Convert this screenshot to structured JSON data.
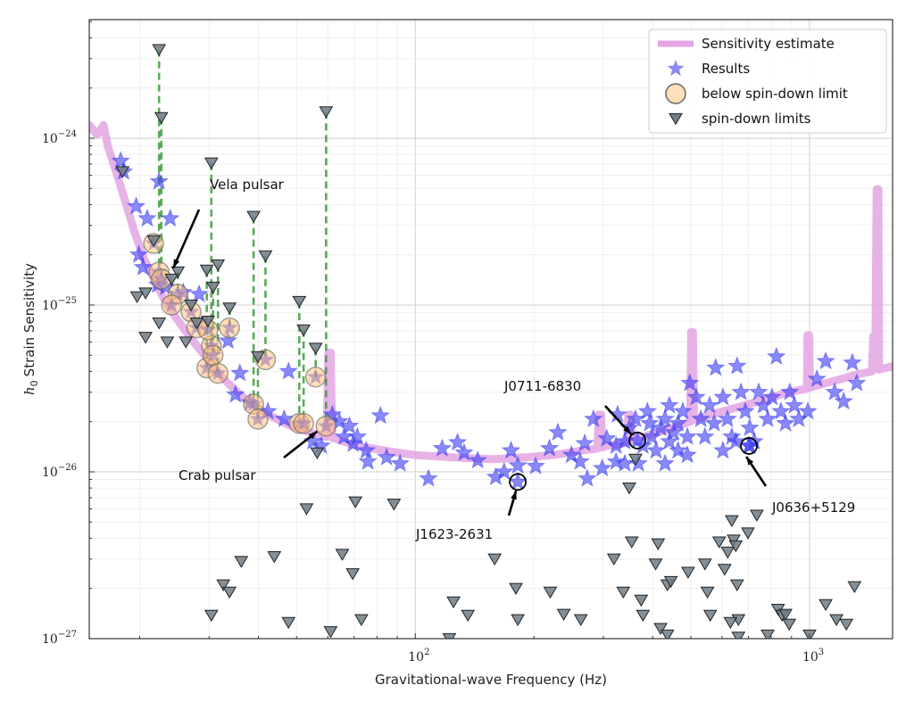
{
  "chart_data": {
    "type": "scatter",
    "xlabel": "Gravitational-wave Frequency (Hz)",
    "ylabel_symbol": "h",
    "ylabel_subscript": "0",
    "ylabel": "Strain Sensitivity",
    "xscale": "log",
    "yscale": "log",
    "xlim": [
      14.9,
      1624
    ],
    "ylim": [
      1e-27,
      5.14e-24
    ],
    "grid": true,
    "legend_placement": "top-right",
    "x_ticks": [
      {
        "value": 100,
        "base": "10",
        "exp": "2"
      },
      {
        "value": 1000,
        "base": "10",
        "exp": "3"
      }
    ],
    "y_ticks": [
      {
        "value": 1e-24,
        "base": "10",
        "exp": "−24"
      },
      {
        "value": 1e-25,
        "base": "10",
        "exp": "−25"
      },
      {
        "value": 1e-26,
        "base": "10",
        "exp": "−26"
      },
      {
        "value": 1e-27,
        "base": "10",
        "exp": "−27"
      }
    ],
    "legend": [
      {
        "label": "Sensitivity estimate",
        "kind": "line"
      },
      {
        "label": "Results",
        "kind": "star"
      },
      {
        "label": "below spin-down limit",
        "kind": "circle"
      },
      {
        "label": "spin-down limits",
        "kind": "triangle"
      }
    ],
    "colors": {
      "sensitivity": "#e3a6e3",
      "results": "#3a3af5",
      "below": "#ffbf73",
      "spindown": "#6f7c87",
      "link": "#3e9a3e"
    },
    "sensitivity_curve": [
      [
        14.9,
        1.2e-24
      ],
      [
        15.6,
        1.05e-24
      ],
      [
        16.2,
        1.2e-24
      ],
      [
        16.6,
        9e-25
      ],
      [
        17.5,
        6.1e-25
      ],
      [
        18.5,
        4e-25
      ],
      [
        19.4,
        2.75e-25
      ],
      [
        20.5,
        1.9e-25
      ],
      [
        22.1,
        1.32e-25
      ],
      [
        23.5,
        1e-25
      ],
      [
        25.1,
        8e-26
      ],
      [
        27,
        6.3e-26
      ],
      [
        29.4,
        4.9e-26
      ],
      [
        32,
        3.8e-26
      ],
      [
        34.4,
        3.2e-26
      ],
      [
        38,
        2.6e-26
      ],
      [
        42.3,
        2.2e-26
      ],
      [
        48,
        1.9e-26
      ],
      [
        55,
        1.7e-26
      ],
      [
        59.6,
        1.62e-26
      ],
      [
        60.2,
        5.2e-26
      ],
      [
        61,
        5.2e-26
      ],
      [
        61.6,
        1.6e-26
      ],
      [
        71.3,
        1.43e-26
      ],
      [
        85,
        1.33e-26
      ],
      [
        100,
        1.26e-26
      ],
      [
        125,
        1.22e-26
      ],
      [
        156,
        1.19e-26
      ],
      [
        190,
        1.22e-26
      ],
      [
        224,
        1.26e-26
      ],
      [
        270,
        1.35e-26
      ],
      [
        290,
        1.38e-26
      ],
      [
        292,
        2.2e-26
      ],
      [
        296,
        2.2e-26
      ],
      [
        298,
        1.4e-26
      ],
      [
        306,
        1.43e-26
      ],
      [
        345,
        1.5e-26
      ],
      [
        347,
        2.2e-26
      ],
      [
        352,
        2.2e-26
      ],
      [
        354,
        1.55e-26
      ],
      [
        378,
        1.62e-26
      ],
      [
        440,
        1.8e-26
      ],
      [
        498,
        2e-26
      ],
      [
        501,
        6.9e-26
      ],
      [
        506,
        6.9e-26
      ],
      [
        509,
        2.05e-26
      ],
      [
        600,
        2.3e-26
      ],
      [
        743,
        2.64e-26
      ],
      [
        880,
        3e-26
      ],
      [
        985,
        3.15e-26
      ],
      [
        988,
        6.6e-26
      ],
      [
        998,
        6.6e-26
      ],
      [
        1002,
        3.2e-26
      ],
      [
        1150,
        3.5e-26
      ],
      [
        1317,
        3.83e-26
      ],
      [
        1440,
        4e-26
      ],
      [
        1450,
        6.5e-26
      ],
      [
        1470,
        6.5e-26
      ],
      [
        1480,
        4.95e-25
      ],
      [
        1495,
        4.95e-25
      ],
      [
        1500,
        4.1e-26
      ],
      [
        1624,
        4.3e-26
      ]
    ],
    "results": [
      [
        17.9,
        7.3e-25
      ],
      [
        18.2,
        6.3e-25
      ],
      [
        19.6,
        3.9e-25
      ],
      [
        20.9,
        3.3e-25
      ],
      [
        22.4,
        5.5e-25
      ],
      [
        23.9,
        3.3e-25
      ],
      [
        19.9,
        2e-25
      ],
      [
        20.4,
        1.68e-25
      ],
      [
        22.2,
        1.32e-25
      ],
      [
        23.3,
        1.28e-25
      ],
      [
        25.8,
        1.19e-25
      ],
      [
        28.3,
        1.16e-25
      ],
      [
        33.5,
        6.1e-26
      ],
      [
        35.9,
        3.9e-26
      ],
      [
        35.0,
        2.9e-26
      ],
      [
        38.1,
        2.6e-26
      ],
      [
        42.3,
        2.3e-26
      ],
      [
        47.7,
        4e-26
      ],
      [
        46.5,
        2.07e-26
      ],
      [
        61.6,
        2.2e-26
      ],
      [
        64.2,
        2e-26
      ],
      [
        68.1,
        1.88e-26
      ],
      [
        71.3,
        1.62e-26
      ],
      [
        69.6,
        1.47e-26
      ],
      [
        75.1,
        1.34e-26
      ],
      [
        75.8,
        1.15e-26
      ],
      [
        81.6,
        2.17e-26
      ],
      [
        66.0,
        1.62e-26
      ],
      [
        57.8,
        1.43e-26
      ],
      [
        55.0,
        1.52e-26
      ],
      [
        84.6,
        1.22e-26
      ],
      [
        91.5,
        1.12e-26
      ],
      [
        108,
        9.1e-27
      ],
      [
        117,
        1.38e-26
      ],
      [
        128,
        1.5e-26
      ],
      [
        133,
        1.3e-26
      ],
      [
        144,
        1.17e-26
      ],
      [
        160,
        9.3e-27
      ],
      [
        168,
        1e-26
      ],
      [
        175,
        1.34e-26
      ],
      [
        182,
        1.09e-26
      ],
      [
        202,
        1.08e-26
      ],
      [
        219,
        1.38e-26
      ],
      [
        230,
        1.72e-26
      ],
      [
        249,
        1.26e-26
      ],
      [
        262,
        1.15e-26
      ],
      [
        273,
        9.1e-27
      ],
      [
        269,
        1.48e-26
      ],
      [
        283,
        2.07e-26
      ],
      [
        306,
        1.58e-26
      ],
      [
        326,
        2.2e-26
      ],
      [
        340,
        1.12e-26
      ],
      [
        323,
        1.43e-26
      ],
      [
        349,
        1.83e-26
      ],
      [
        362,
        2.07e-26
      ],
      [
        378,
        1.43e-26
      ],
      [
        388,
        2.3e-26
      ],
      [
        398,
        1.62e-26
      ],
      [
        408,
        1.34e-26
      ],
      [
        419,
        1.83e-26
      ],
      [
        430,
        2.07e-26
      ],
      [
        441,
        1.52e-26
      ],
      [
        452,
        1.72e-26
      ],
      [
        464,
        1.34e-26
      ],
      [
        477,
        2.3e-26
      ],
      [
        490,
        1.62e-26
      ],
      [
        497,
        3.4e-26
      ],
      [
        516,
        2.8e-26
      ],
      [
        530,
        2.07e-26
      ],
      [
        543,
        1.62e-26
      ],
      [
        558,
        2.5e-26
      ],
      [
        573,
        1.95e-26
      ],
      [
        578,
        4.2e-26
      ],
      [
        603,
        2.8e-26
      ],
      [
        619,
        2.07e-26
      ],
      [
        635,
        1.62e-26
      ],
      [
        655,
        4.3e-26
      ],
      [
        670,
        3e-26
      ],
      [
        687,
        2.3e-26
      ],
      [
        705,
        1.83e-26
      ],
      [
        724,
        1.52e-26
      ],
      [
        743,
        3e-26
      ],
      [
        763,
        2.5e-26
      ],
      [
        783,
        2.07e-26
      ],
      [
        803,
        2.8e-26
      ],
      [
        824,
        4.9e-26
      ],
      [
        846,
        2.3e-26
      ],
      [
        869,
        1.95e-26
      ],
      [
        891,
        3e-26
      ],
      [
        915,
        2.5e-26
      ],
      [
        939,
        2.07e-26
      ],
      [
        990,
        2.3e-26
      ],
      [
        1044,
        3.6e-26
      ],
      [
        1099,
        4.6e-26
      ],
      [
        1158,
        3e-26
      ],
      [
        1220,
        2.64e-26
      ],
      [
        1284,
        4.5e-26
      ],
      [
        1317,
        3.4e-26
      ],
      [
        368,
        1.12e-26
      ],
      [
        323,
        1.15e-26
      ],
      [
        298,
        1.05e-26
      ],
      [
        430,
        1.12e-26
      ],
      [
        340,
        1.52e-26
      ],
      [
        490,
        1.26e-26
      ],
      [
        603,
        1.34e-26
      ],
      [
        650,
        1.52e-26
      ],
      [
        705,
        1.43e-26
      ],
      [
        393,
        1.95e-26
      ],
      [
        441,
        2.5e-26
      ],
      [
        464,
        1.95e-26
      ],
      [
        366,
        1.54e-26
      ],
      [
        182,
        8.7e-27
      ],
      [
        702,
        1.43e-26
      ]
    ],
    "below_spindown": [
      {
        "f": 22.4,
        "h_sd": 3.4e-24,
        "h_ul": 1.58e-25
      },
      {
        "f": 22.7,
        "h_sd": 1.33e-24,
        "h_ul": 1.43e-25
      },
      {
        "f": 30.4,
        "h_sd": 7.1e-25,
        "h_ul": 5.7e-26
      },
      {
        "f": 29.6,
        "h_sd": 1.62e-25,
        "h_ul": 4.2e-26
      },
      {
        "f": 31.6,
        "h_sd": 1.74e-25,
        "h_ul": 3.9e-26
      },
      {
        "f": 30.7,
        "h_sd": 1.28e-25,
        "h_ul": 5e-26
      },
      {
        "f": 38.9,
        "h_sd": 3.4e-25,
        "h_ul": 2.55e-26
      },
      {
        "f": 41.7,
        "h_sd": 1.97e-25,
        "h_ul": 4.7e-26
      },
      {
        "f": 39.9,
        "h_sd": 4.9e-26,
        "h_ul": 2.07e-26
      },
      {
        "f": 50.8,
        "h_sd": 1.05e-25,
        "h_ul": 1.95e-26
      },
      {
        "f": 52.1,
        "h_sd": 7.1e-26,
        "h_ul": 1.95e-26
      },
      {
        "f": 55.9,
        "h_sd": 5.5e-26,
        "h_ul": 3.7e-26
      },
      {
        "f": 59.4,
        "h_sd": 1.44e-24,
        "h_ul": 1.88e-26
      },
      {
        "f": 33.8,
        "h_sd": 9.6e-26,
        "h_ul": 7.3e-26
      },
      {
        "f": 21.7,
        "h_sd": 2.43e-25,
        "h_ul": 2.34e-25
      },
      {
        "f": 25.0,
        "h_sd": 1.58e-25,
        "h_ul": 1.16e-25
      },
      {
        "f": 24.1,
        "h_sd": 1.43e-25,
        "h_ul": 1e-25
      },
      {
        "f": 27.0,
        "h_sd": 1e-25,
        "h_ul": 9.1e-26
      },
      {
        "f": 27.9,
        "h_sd": 7.8e-26,
        "h_ul": 7.3e-26
      },
      {
        "f": 29.8,
        "h_sd": 8e-26,
        "h_ul": 7.1e-26
      }
    ],
    "spindown_only": [
      [
        18.1,
        6.3e-25
      ],
      [
        19.7,
        1.12e-25
      ],
      [
        20.7,
        1.18e-25
      ],
      [
        22.4,
        7.8e-26
      ],
      [
        20.7,
        6.4e-26
      ],
      [
        23.5,
        6e-26
      ],
      [
        26.2,
        6e-26
      ],
      [
        56.4,
        1.3e-26
      ],
      [
        362,
        1.19e-26
      ],
      [
        349,
        8e-27
      ],
      [
        70.5,
        6.6e-27
      ],
      [
        53.0,
        6e-27
      ],
      [
        88.3,
        6.4e-27
      ],
      [
        36.2,
        2.9e-27
      ],
      [
        43.9,
        3.1e-27
      ],
      [
        32.6,
        2.1e-27
      ],
      [
        33.8,
        1.9e-27
      ],
      [
        30.4,
        1.38e-27
      ],
      [
        47.7,
        1.25e-27
      ],
      [
        65.3,
        3.2e-27
      ],
      [
        69.4,
        2.45e-27
      ],
      [
        73.0,
        1.3e-27
      ],
      [
        61.0,
        1.1e-27
      ],
      [
        125,
        1.66e-27
      ],
      [
        136,
        1.38e-27
      ],
      [
        159,
        3e-27
      ],
      [
        180,
        2e-27
      ],
      [
        182,
        1.3e-27
      ],
      [
        122,
        1e-27
      ],
      [
        220,
        1.9e-27
      ],
      [
        238,
        1.4e-27
      ],
      [
        263,
        1.3e-27
      ],
      [
        319,
        3e-27
      ],
      [
        354,
        3.8e-27
      ],
      [
        337,
        1.9e-27
      ],
      [
        378,
        1.38e-27
      ],
      [
        374,
        1.7e-27
      ],
      [
        413,
        3.7e-27
      ],
      [
        407,
        2.8e-27
      ],
      [
        436,
        2.1e-27
      ],
      [
        445,
        2.2e-27
      ],
      [
        492,
        2.5e-27
      ],
      [
        419,
        1.15e-27
      ],
      [
        436,
        1.05e-27
      ],
      [
        543,
        2.8e-27
      ],
      [
        551,
        1.9e-27
      ],
      [
        560,
        1.38e-27
      ],
      [
        590,
        3.8e-27
      ],
      [
        609,
        2.6e-27
      ],
      [
        620,
        3.3e-27
      ],
      [
        635,
        5.1e-27
      ],
      [
        642,
        3.9e-27
      ],
      [
        655,
        2.1e-27
      ],
      [
        660,
        1.3e-27
      ],
      [
        630,
        1.25e-27
      ],
      [
        698,
        4.3e-27
      ],
      [
        735,
        5.5e-27
      ],
      [
        650,
        3.6e-27
      ],
      [
        832,
        1.5e-27
      ],
      [
        852,
        1.38e-27
      ],
      [
        869,
        1.4e-27
      ],
      [
        888,
        1.22e-27
      ],
      [
        1099,
        1.6e-27
      ],
      [
        1170,
        1.3e-27
      ],
      [
        1240,
        1.22e-27
      ],
      [
        1300,
        2.05e-27
      ],
      [
        1000,
        1.05e-27
      ],
      [
        660,
        1.02e-27
      ],
      [
        783,
        1.05e-27
      ]
    ],
    "annotations": [
      {
        "text": "Vela pulsar",
        "f": 23.6,
        "h": 1.55e-25,
        "circle": false
      },
      {
        "text": "Crab pulsar",
        "f": 59.4,
        "h": 1.88e-26,
        "circle": false
      },
      {
        "text": "J0711-6830",
        "f": 366,
        "h": 1.54e-26,
        "circle": true
      },
      {
        "text": "J1623-2631",
        "f": 182,
        "h": 8.7e-27,
        "circle": true
      },
      {
        "text": "J0636+5129",
        "f": 702,
        "h": 1.43e-26,
        "circle": true
      }
    ]
  }
}
